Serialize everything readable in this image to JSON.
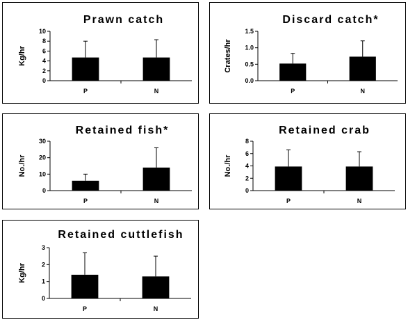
{
  "chart_data": [
    {
      "type": "bar",
      "title": "Prawn catch",
      "ylabel": "Kg/hr",
      "categories": [
        "P",
        "N"
      ],
      "values": [
        4.7,
        4.7
      ],
      "errors": [
        3.3,
        3.6
      ],
      "ylim": [
        0,
        10
      ],
      "yticks": [
        0,
        2,
        4,
        6,
        8,
        10
      ],
      "ytick_labels": [
        "0",
        "2",
        "4",
        "6",
        "8",
        "10"
      ]
    },
    {
      "type": "bar",
      "title": "Discard catch*",
      "ylabel": "Crates/hr",
      "categories": [
        "P",
        "N"
      ],
      "values": [
        0.52,
        0.73
      ],
      "errors": [
        0.31,
        0.48
      ],
      "ylim": [
        0,
        1.5
      ],
      "yticks": [
        0,
        0.5,
        1.0,
        1.5
      ],
      "ytick_labels": [
        "0.0",
        "0.5",
        "1.0",
        "1.5"
      ]
    },
    {
      "type": "bar",
      "title": "Retained fish*",
      "ylabel": "No./hr",
      "categories": [
        "P",
        "N"
      ],
      "values": [
        6,
        14
      ],
      "errors": [
        4,
        12
      ],
      "ylim": [
        0,
        30
      ],
      "yticks": [
        0,
        10,
        20,
        30
      ],
      "ytick_labels": [
        "0",
        "10",
        "20",
        "30"
      ]
    },
    {
      "type": "bar",
      "title": "Retained crab",
      "ylabel": "No./hr",
      "categories": [
        "P",
        "N"
      ],
      "values": [
        3.9,
        3.9
      ],
      "errors": [
        2.7,
        2.4
      ],
      "ylim": [
        0,
        8
      ],
      "yticks": [
        0,
        2,
        4,
        6,
        8
      ],
      "ytick_labels": [
        "0",
        "2",
        "4",
        "6",
        "8"
      ]
    },
    {
      "type": "bar",
      "title": "Retained cuttlefish",
      "ylabel": "Kg/hr",
      "categories": [
        "P",
        "N"
      ],
      "values": [
        1.4,
        1.3
      ],
      "errors": [
        1.3,
        1.2
      ],
      "ylim": [
        0,
        3
      ],
      "yticks": [
        0,
        1,
        2,
        3
      ],
      "ytick_labels": [
        "0",
        "1",
        "2",
        "3"
      ]
    }
  ]
}
